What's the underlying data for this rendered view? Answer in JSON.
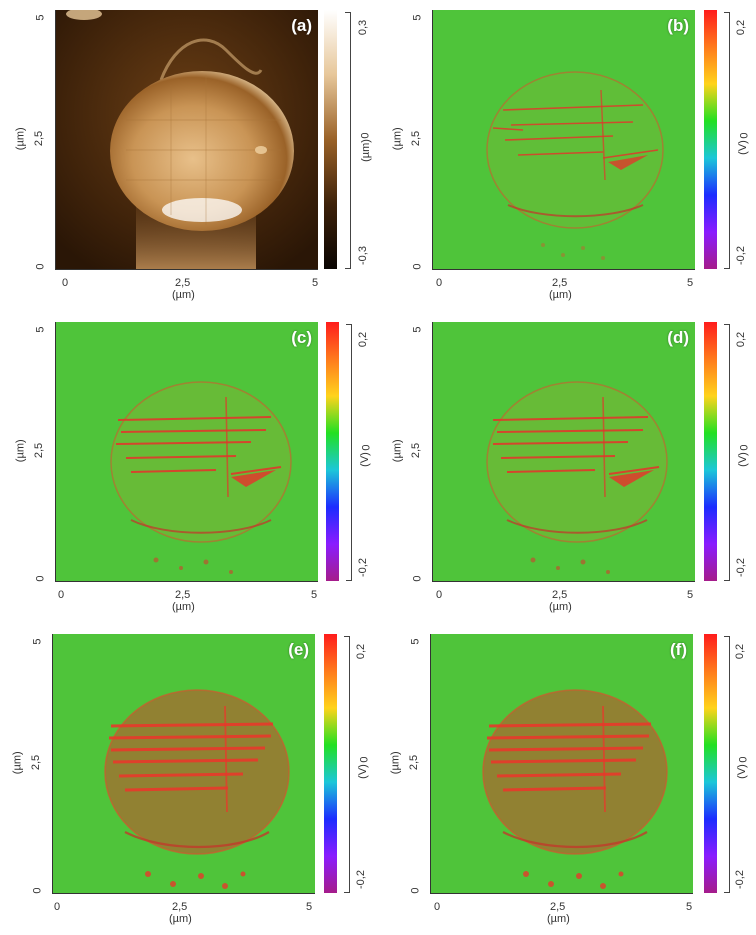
{
  "panels": [
    {
      "label": "(a)",
      "type": "topography",
      "y_ticks": [
        "5",
        "2,5",
        "0"
      ],
      "x_ticks": [
        "0",
        "2,5",
        "5"
      ],
      "y_label": "(µm)",
      "x_label": "(µm)",
      "colorbar": {
        "top": "0,3",
        "mid": "0",
        "bottom": "-0,3",
        "unit": "(µm)"
      }
    },
    {
      "label": "(b)",
      "type": "kpfm",
      "y_ticks": [
        "5",
        "2,5",
        "0"
      ],
      "x_ticks": [
        "0",
        "2,5",
        "5"
      ],
      "y_label": "(µm)",
      "x_label": "(µm)",
      "colorbar": {
        "top": "0,2",
        "mid": "0",
        "bottom": "-0,2",
        "unit": "(V)"
      }
    },
    {
      "label": "(c)",
      "type": "kpfm",
      "y_ticks": [
        "5",
        "2,5",
        "0"
      ],
      "x_ticks": [
        "0",
        "2,5",
        "5"
      ],
      "y_label": "(µm)",
      "x_label": "(µm)",
      "colorbar": {
        "top": "0,2",
        "mid": "0",
        "bottom": "-0,2",
        "unit": "(V)"
      }
    },
    {
      "label": "(d)",
      "type": "kpfm",
      "y_ticks": [
        "5",
        "2,5",
        "0"
      ],
      "x_ticks": [
        "0",
        "2,5",
        "5"
      ],
      "y_label": "(µm)",
      "x_label": "(µm)",
      "colorbar": {
        "top": "0,2",
        "mid": "0",
        "bottom": "-0,2",
        "unit": "(V)"
      }
    },
    {
      "label": "(e)",
      "type": "kpfm",
      "y_ticks": [
        "5",
        "2,5",
        "0"
      ],
      "x_ticks": [
        "0",
        "2,5",
        "5"
      ],
      "y_label": "(µm)",
      "x_label": "(µm)",
      "colorbar": {
        "top": "0,2",
        "mid": "0",
        "bottom": "-0,2",
        "unit": "(V)"
      }
    },
    {
      "label": "(f)",
      "type": "kpfm",
      "y_ticks": [
        "5",
        "2,5",
        "0"
      ],
      "x_ticks": [
        "0",
        "2,5",
        "5"
      ],
      "y_label": "(µm)",
      "x_label": "(µm)",
      "colorbar": {
        "top": "0,2",
        "mid": "0",
        "bottom": "-0,2",
        "unit": "(V)"
      }
    }
  ],
  "colors": {
    "kpfm_background": "#4fc43a",
    "kpfm_feature": "#e8392b",
    "topo_dark": "#2a1606",
    "topo_mid": "#8a5a26",
    "topo_light": "#f3d6a8"
  }
}
